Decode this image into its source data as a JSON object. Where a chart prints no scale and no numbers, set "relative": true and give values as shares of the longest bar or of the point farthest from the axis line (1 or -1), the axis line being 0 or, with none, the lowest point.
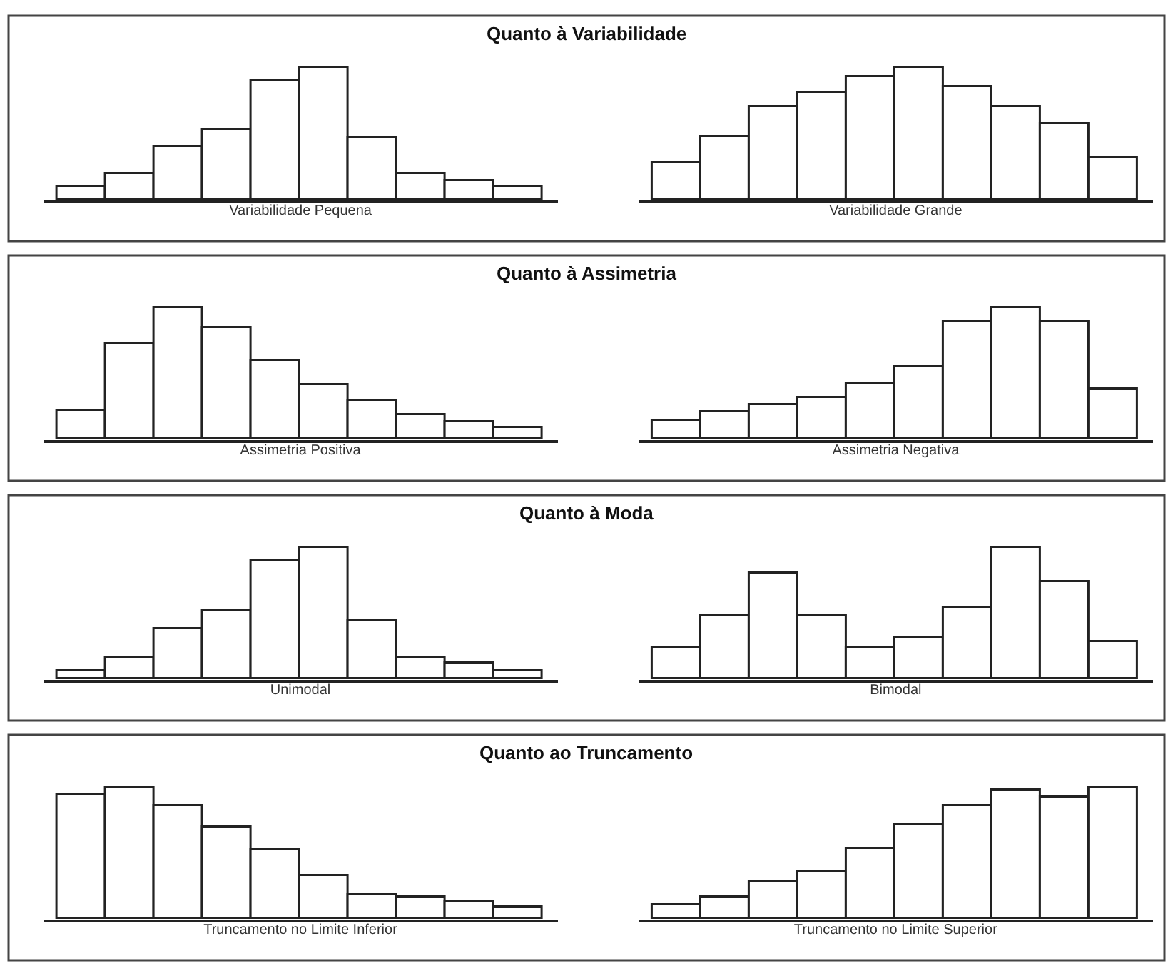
{
  "chart_data": [
    {
      "type": "bar",
      "relative": true,
      "title": "Quanto à Variabilidade",
      "xlabel": "Variabilidade Pequena",
      "categories": [
        null,
        null,
        null,
        null,
        null,
        null,
        null,
        null,
        null,
        null
      ],
      "color": "#ffffff",
      "values": [
        0.1,
        0.2,
        0.4,
        0.53,
        0.9,
        1,
        0.47,
        0.2,
        0.15,
        0.1
      ]
    },
    {
      "type": "bar",
      "relative": true,
      "xlabel": "Variabilidade Grande",
      "categories": [
        null,
        null,
        null,
        null,
        null,
        null,
        null,
        null,
        null,
        null
      ],
      "color": "#ffffff",
      "values": [
        0.29,
        0.48,
        0.7,
        0.81,
        0.93,
        1,
        0.86,
        0.7,
        0.58,
        0.32
      ]
    },
    {
      "type": "bar",
      "relative": true,
      "title": "Quanto à Assimetria",
      "xlabel": "Assimetria Positiva",
      "categories": [
        null,
        null,
        null,
        null,
        null,
        null,
        null,
        null,
        null,
        null
      ],
      "color": "#ffffff",
      "values": [
        0.22,
        0.73,
        1,
        0.84,
        0.6,
        0.41,
        0.3,
        0.19,
        0.13,
        0.09
      ]
    },
    {
      "type": "bar",
      "relative": true,
      "xlabel": "Assimetria Negativa",
      "categories": [
        null,
        null,
        null,
        null,
        null,
        null,
        null,
        null,
        null,
        null
      ],
      "color": "#ffffff",
      "values": [
        0.15,
        0.21,
        0.26,
        0.32,
        0.43,
        0.55,
        0.89,
        1,
        0.89,
        0.38
      ]
    },
    {
      "type": "bar",
      "relative": true,
      "title": "Quanto à Moda",
      "xlabel": "Unimodal",
      "categories": [
        null,
        null,
        null,
        null,
        null,
        null,
        null,
        null,
        null,
        null
      ],
      "color": "#ffffff",
      "values": [
        0.07,
        0.17,
        0.38,
        0.52,
        0.9,
        1,
        0.45,
        0.17,
        0.12,
        0.07
      ]
    },
    {
      "type": "bar",
      "relative": true,
      "xlabel": "Bimodal",
      "categories": [
        null,
        null,
        null,
        null,
        null,
        null,
        null,
        null,
        null,
        null
      ],
      "color": "#ffffff",
      "values": [
        0.24,
        0.48,
        0.8,
        0.48,
        0.24,
        0.32,
        0.54,
        1,
        0.74,
        0.28
      ]
    },
    {
      "type": "bar",
      "relative": true,
      "title": "Quanto ao Truncamento",
      "xlabel": "Truncamento no Limite Inferior",
      "categories": [
        null,
        null,
        null,
        null,
        null,
        null,
        null,
        null,
        null,
        null
      ],
      "color": "#ffffff",
      "values": [
        0.94,
        1,
        0.86,
        0.69,
        0.52,
        0.33,
        0.19,
        0.17,
        0.13,
        0.09
      ]
    },
    {
      "type": "bar",
      "relative": true,
      "xlabel": "Truncamento no Limite Superior",
      "categories": [
        null,
        null,
        null,
        null,
        null,
        null,
        null,
        null,
        null,
        null
      ],
      "color": "#ffffff",
      "values": [
        0.11,
        0.17,
        0.28,
        0.36,
        0.53,
        0.72,
        0.86,
        0.98,
        0.92,
        1
      ]
    }
  ]
}
